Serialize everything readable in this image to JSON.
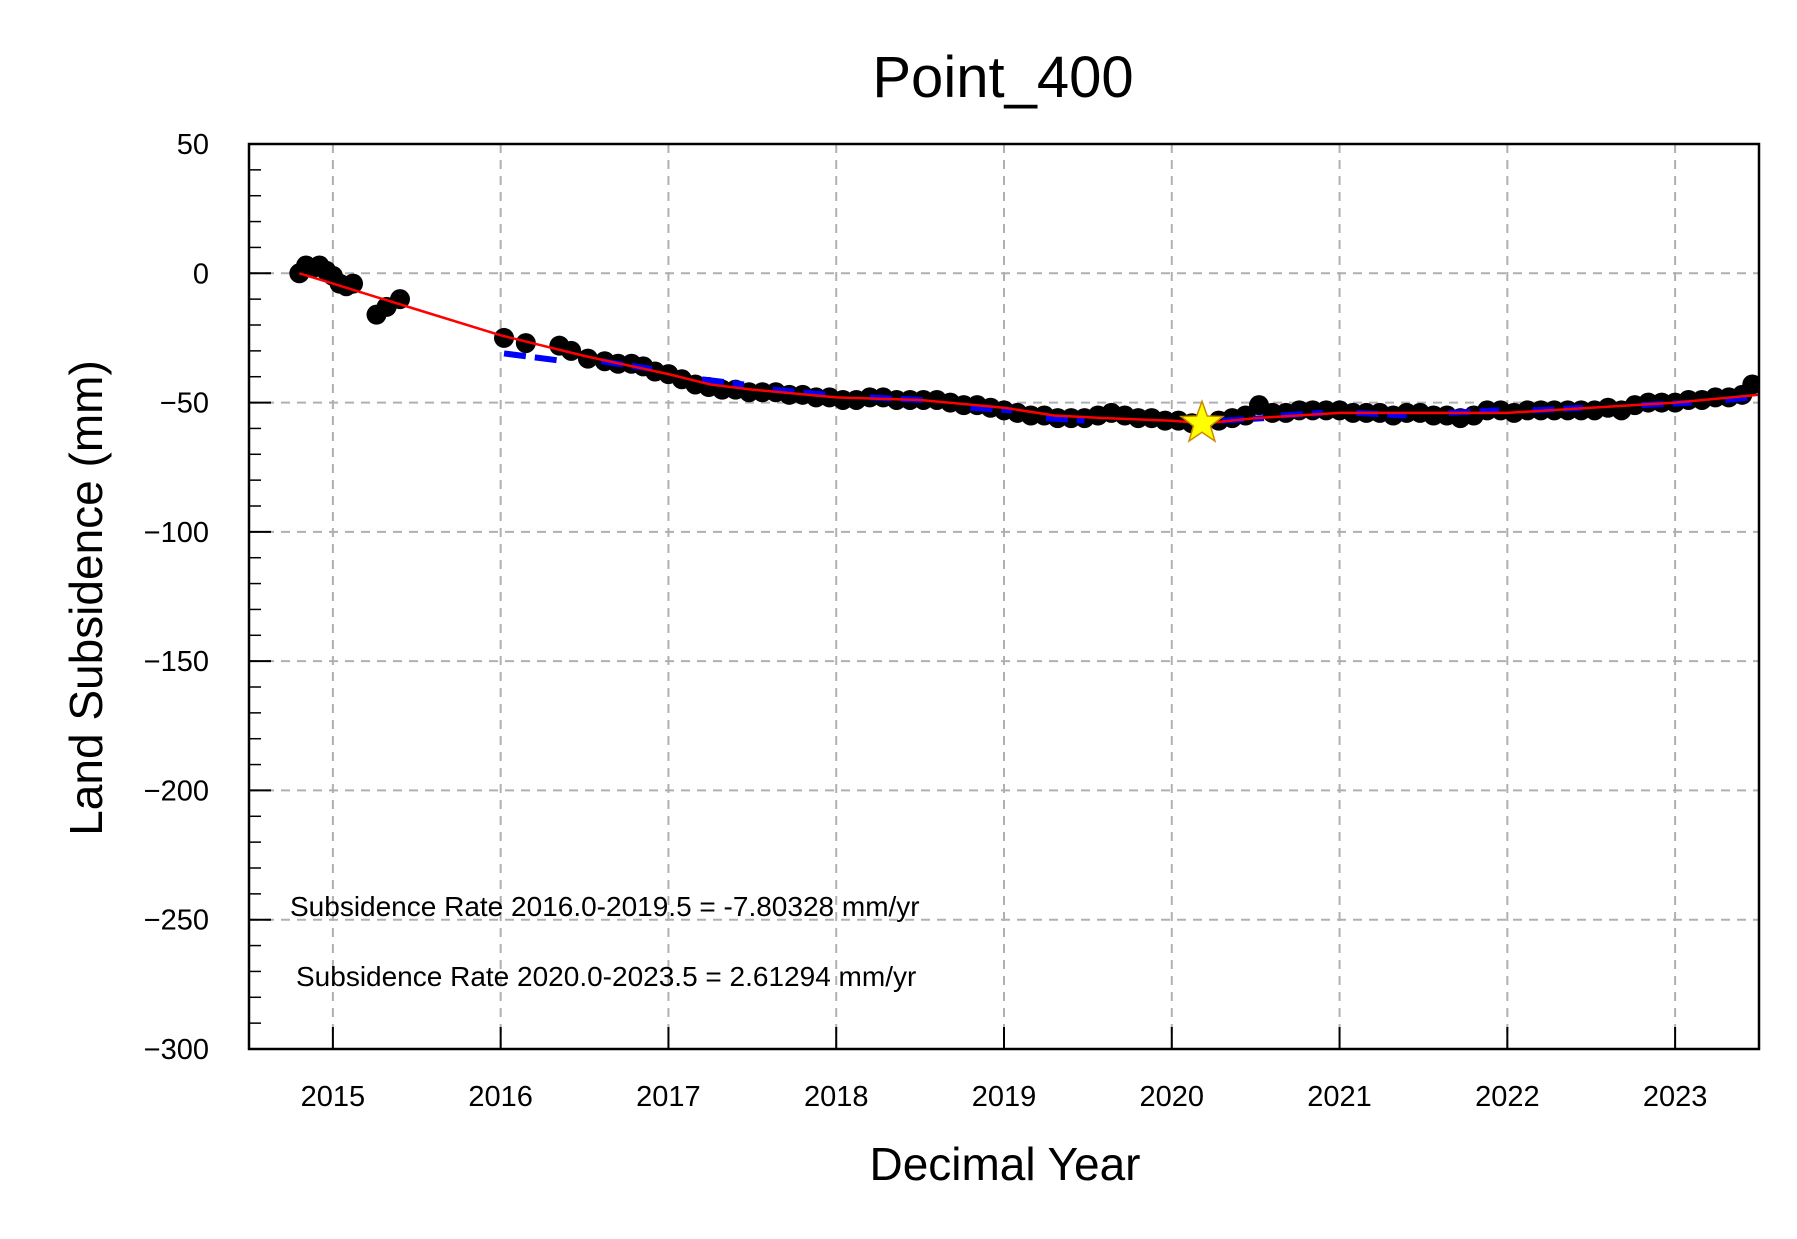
{
  "chart_data": {
    "type": "scatter",
    "title": "Point_400",
    "xlabel": "Decimal Year",
    "ylabel": "Land Subsidence (mm)",
    "xlim": [
      2014.5,
      2023.5
    ],
    "ylim": [
      -300,
      50
    ],
    "xticks": [
      2015,
      2016,
      2017,
      2018,
      2019,
      2020,
      2021,
      2022,
      2023
    ],
    "xtick_labels": [
      "2015",
      "2016",
      "2017",
      "2018",
      "2019",
      "2020",
      "2021",
      "2022",
      "2023"
    ],
    "yticks": [
      50,
      0,
      -50,
      -100,
      -150,
      -200,
      -250,
      -300
    ],
    "ytick_labels": [
      "50",
      "0",
      "−50",
      "−100",
      "−150",
      "−200",
      "−250",
      "−300"
    ],
    "grid": true,
    "annotations": [
      "Subsidence Rate 2016.0-2019.5 = -7.80328 mm/yr",
      "Subsidence Rate 2020.0-2023.5 = 2.61294 mm/yr"
    ],
    "series": [
      {
        "kind": "scatter",
        "color": "#000000",
        "x": [
          2014.8,
          2014.84,
          2014.88,
          2014.92,
          2014.96,
          2015.0,
          2015.04,
          2015.08,
          2015.12,
          2015.26,
          2015.32,
          2015.4,
          2016.02,
          2016.15,
          2016.35,
          2016.42,
          2016.52,
          2016.62,
          2016.7,
          2016.78,
          2016.85,
          2016.92,
          2017.0,
          2017.08,
          2017.16,
          2017.24,
          2017.32,
          2017.4,
          2017.48,
          2017.56,
          2017.64,
          2017.72,
          2017.8,
          2017.88,
          2017.96,
          2018.04,
          2018.12,
          2018.2,
          2018.28,
          2018.36,
          2018.44,
          2018.52,
          2018.6,
          2018.68,
          2018.76,
          2018.84,
          2018.92,
          2019.0,
          2019.08,
          2019.16,
          2019.24,
          2019.32,
          2019.4,
          2019.48,
          2019.56,
          2019.64,
          2019.72,
          2019.8,
          2019.88,
          2019.96,
          2020.04,
          2020.12,
          2020.28,
          2020.36,
          2020.44,
          2020.52,
          2020.6,
          2020.68,
          2020.76,
          2020.84,
          2020.92,
          2021.0,
          2021.08,
          2021.16,
          2021.24,
          2021.32,
          2021.4,
          2021.48,
          2021.56,
          2021.64,
          2021.72,
          2021.8,
          2021.88,
          2021.96,
          2022.04,
          2022.12,
          2022.2,
          2022.28,
          2022.36,
          2022.44,
          2022.52,
          2022.6,
          2022.68,
          2022.76,
          2022.84,
          2022.92,
          2023.0,
          2023.08,
          2023.16,
          2023.24,
          2023.32,
          2023.4,
          2023.46
        ],
        "y": [
          0,
          3,
          2,
          3,
          1,
          -1,
          -4,
          -5,
          -4,
          -16,
          -13,
          -10,
          -25,
          -27,
          -28,
          -30,
          -33,
          -34,
          -35,
          -35,
          -36,
          -38,
          -39,
          -41,
          -43,
          -44,
          -45,
          -45,
          -46,
          -46,
          -46,
          -47,
          -47,
          -48,
          -48,
          -49,
          -49,
          -48,
          -48,
          -49,
          -49,
          -49,
          -49,
          -50,
          -51,
          -51,
          -52,
          -53,
          -54,
          -55,
          -55,
          -56,
          -56,
          -56,
          -55,
          -54,
          -55,
          -56,
          -56,
          -57,
          -57,
          -58,
          -57,
          -56,
          -55,
          -51,
          -54,
          -54,
          -53,
          -53,
          -53,
          -53,
          -54,
          -54,
          -54,
          -55,
          -54,
          -54,
          -55,
          -55,
          -56,
          -55,
          -53,
          -53,
          -54,
          -53,
          -53,
          -53,
          -53,
          -53,
          -53,
          -52,
          -53,
          -51,
          -50,
          -50,
          -50,
          -49,
          -49,
          -48,
          -48,
          -47,
          -43
        ]
      },
      {
        "kind": "line",
        "color": "#ff0000",
        "x": [
          2014.8,
          2015.0,
          2015.5,
          2016.0,
          2016.5,
          2017.0,
          2017.25,
          2017.5,
          2018.0,
          2018.5,
          2019.0,
          2019.3,
          2019.6,
          2020.0,
          2020.2,
          2020.5,
          2021.0,
          2021.5,
          2022.0,
          2022.5,
          2023.0,
          2023.5
        ],
        "y": [
          0,
          -4,
          -14,
          -24,
          -32,
          -39,
          -43,
          -45,
          -48,
          -49,
          -52,
          -55,
          -56,
          -57,
          -58,
          -56,
          -54,
          -54,
          -54,
          -52,
          -50,
          -47
        ]
      },
      {
        "kind": "dashed-segments",
        "color": "#0000ff",
        "segments": [
          [
            [
              2016.02,
              -31
            ],
            [
              2016.38,
              -34
            ]
          ],
          [
            [
              2016.6,
              -34
            ],
            [
              2016.9,
              -37
            ]
          ],
          [
            [
              2017.2,
              -41
            ],
            [
              2017.45,
              -43
            ]
          ],
          [
            [
              2017.62,
              -45
            ],
            [
              2017.95,
              -47
            ]
          ],
          [
            [
              2018.2,
              -48
            ],
            [
              2018.52,
              -49
            ]
          ],
          [
            [
              2018.8,
              -52
            ],
            [
              2019.05,
              -53
            ]
          ],
          [
            [
              2019.25,
              -56
            ],
            [
              2019.48,
              -57
            ]
          ],
          [
            [
              2020.3,
              -57
            ],
            [
              2020.55,
              -56
            ]
          ],
          [
            [
              2020.65,
              -55
            ],
            [
              2020.9,
              -54
            ]
          ],
          [
            [
              2021.1,
              -54
            ],
            [
              2021.4,
              -55
            ]
          ],
          [
            [
              2021.65,
              -54
            ],
            [
              2021.95,
              -53
            ]
          ],
          [
            [
              2022.15,
              -53
            ],
            [
              2022.45,
              -52
            ]
          ],
          [
            [
              2022.8,
              -51
            ],
            [
              2023.1,
              -50
            ]
          ],
          [
            [
              2023.3,
              -49
            ],
            [
              2023.45,
              -48
            ]
          ]
        ]
      },
      {
        "kind": "marker",
        "shape": "star",
        "color": "#ffff00",
        "edge_color": "#cc8800",
        "x": [
          2020.18
        ],
        "y": [
          -58
        ]
      }
    ]
  }
}
